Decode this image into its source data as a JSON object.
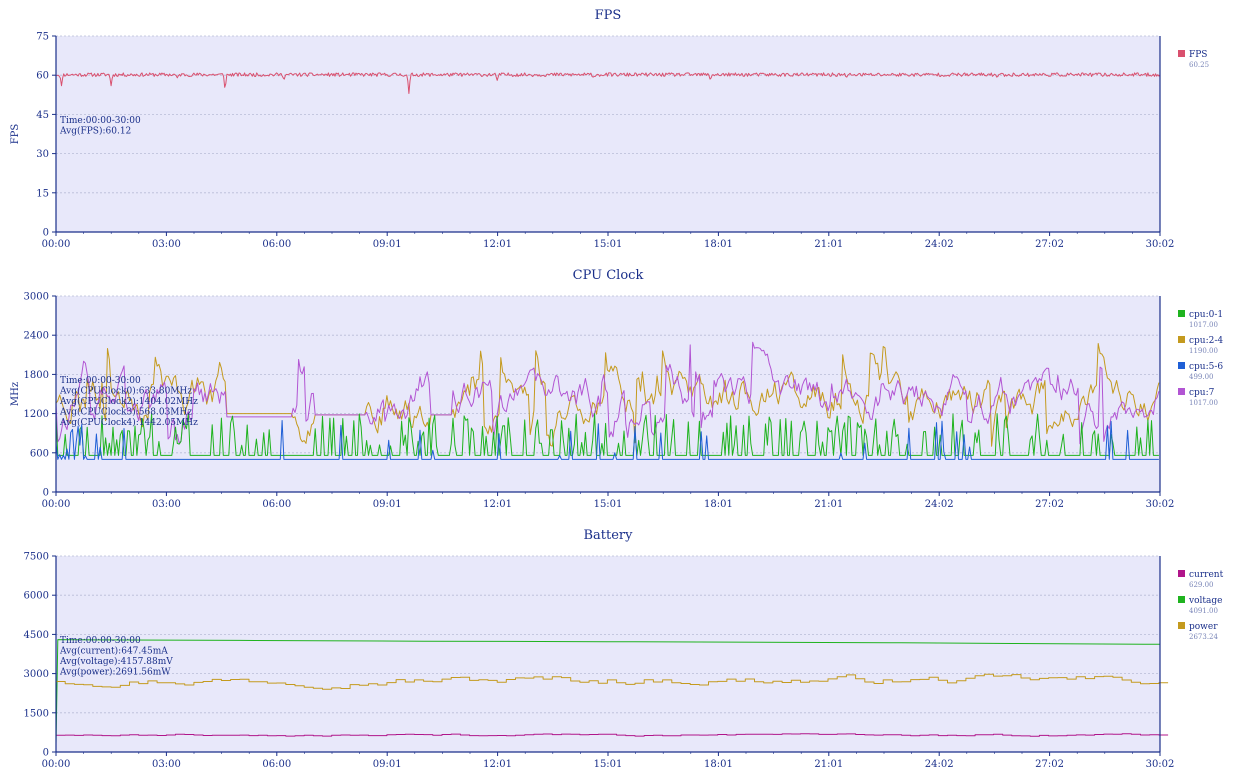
{
  "chart_data": [
    {
      "type": "line",
      "title": "FPS",
      "ylabel": "FPS",
      "ylim": [
        0,
        75
      ],
      "yticks": [
        "75",
        "60",
        "45",
        "30",
        "15",
        "0"
      ],
      "ytick_values": [
        75,
        60,
        45,
        30,
        15,
        0
      ],
      "x_ticks": [
        "00:00",
        "03:00",
        "06:00",
        "09:01",
        "12:01",
        "15:01",
        "18:01",
        "21:01",
        "24:02",
        "27:02",
        "30:02"
      ],
      "xlim_minutes": [
        0,
        30.03
      ],
      "annotation": [
        "Time:00:00-30:00",
        "Avg(FPS):60.12"
      ],
      "series": [
        {
          "name": "FPS",
          "legend_value": "60.25",
          "color": "#d9506e",
          "kind": "noise",
          "base": 60.2,
          "noise": 0.7,
          "step": 0.03,
          "seed": 11,
          "dips": [
            [
              0.15,
              56
            ],
            [
              1.5,
              56
            ],
            [
              3.3,
              59
            ],
            [
              4.6,
              54
            ],
            [
              6.2,
              58
            ],
            [
              9.6,
              53
            ],
            [
              12.0,
              58
            ],
            [
              14.6,
              59
            ],
            [
              17.8,
              58
            ],
            [
              21.5,
              59
            ],
            [
              25.6,
              59
            ]
          ]
        }
      ],
      "grid": true,
      "legend_position": "right"
    },
    {
      "type": "line",
      "title": "CPU Clock",
      "ylabel": "MHz",
      "ylim": [
        0,
        3000
      ],
      "yticks": [
        "3000",
        "2400",
        "1800",
        "1200",
        "600",
        "0"
      ],
      "ytick_values": [
        3000,
        2400,
        1800,
        1200,
        600,
        0
      ],
      "x_ticks": [
        "00:00",
        "03:00",
        "06:00",
        "09:01",
        "12:01",
        "15:01",
        "18:01",
        "21:01",
        "24:02",
        "27:02",
        "30:02"
      ],
      "xlim_minutes": [
        0,
        30.03
      ],
      "annotation": [
        "Time:00:00-30:00",
        "Avg(CPUClock0):633.80MHz",
        "Avg(CPUClock2):1404.02MHz",
        "Avg(CPUClock3):568.03MHz",
        "Avg(CPUClock4):1442.05MHz"
      ],
      "series": [
        {
          "name": "cpu:2-4",
          "legend_value": "1190.00",
          "color": "#c49a1e",
          "kind": "wild",
          "base": 1450,
          "spread": 500,
          "min": 700,
          "max": 2300,
          "step": 0.05,
          "seed": 23,
          "flat": [
            [
              4.6,
              6.4,
              1200
            ],
            [
              7.0,
              8.4,
              1180
            ],
            [
              10.2,
              10.8,
              1180
            ]
          ]
        },
        {
          "name": "cpu:7",
          "legend_value": "1017.00",
          "color": "#b255d3",
          "kind": "wild",
          "base": 1450,
          "spread": 480,
          "min": 700,
          "max": 2300,
          "step": 0.05,
          "seed": 37,
          "flat": [
            [
              4.6,
              6.4,
              1150
            ],
            [
              7.0,
              8.4,
              1180
            ],
            [
              10.2,
              10.8,
              1180
            ]
          ]
        },
        {
          "name": "cpu:0-1",
          "legend_value": "1017.00",
          "color": "#1fb31f",
          "kind": "spiky",
          "base": 560,
          "min": 700,
          "max": 1200,
          "density": 0.35,
          "step": 0.05,
          "seed": 51,
          "gaps": [
            [
              5.9,
              7.0
            ],
            [
              16.9,
              17.2
            ]
          ]
        },
        {
          "name": "cpu:5-6",
          "legend_value": "499.00",
          "color": "#1f5fd6",
          "kind": "spiky",
          "base": 499,
          "min": 550,
          "max": 1100,
          "density": 0.03,
          "step": 0.05,
          "seed": 67,
          "burst": [
            [
              0,
              0.9,
              0.45
            ],
            [
              1.0,
              2.2,
              0.04
            ],
            [
              9.8,
              10.8,
              0.15
            ],
            [
              23.6,
              24.4,
              0.15
            ]
          ]
        }
      ],
      "grid": true,
      "legend_position": "right"
    },
    {
      "type": "line",
      "title": "Battery",
      "ylabel": "",
      "ylim": [
        0,
        7500
      ],
      "yticks": [
        "7500",
        "6000",
        "4500",
        "3000",
        "1500",
        "0"
      ],
      "ytick_values": [
        7500,
        6000,
        4500,
        3000,
        1500,
        0
      ],
      "x_ticks": [
        "00:00",
        "03:00",
        "06:00",
        "09:01",
        "12:01",
        "15:01",
        "18:01",
        "21:01",
        "24:02",
        "27:02",
        "30:02"
      ],
      "xlim_minutes": [
        0,
        30.03
      ],
      "annotation": [
        "Time:00:00-30:00",
        "Avg(current):647.45mA",
        "Avg(voltage):4157.88mV",
        "Avg(power):2691.56mW"
      ],
      "series": [
        {
          "name": "current",
          "legend_value": "629.00",
          "color": "#b0158a",
          "kind": "step",
          "base": 650,
          "spread": 90,
          "step": 0.25,
          "seed": 81,
          "start_zero": true
        },
        {
          "name": "voltage",
          "legend_value": "4091.00",
          "color": "#1fb31f",
          "kind": "points",
          "points": [
            [
              0,
              300
            ],
            [
              0.05,
              4300
            ],
            [
              1.0,
              4290
            ],
            [
              5.0,
              4270
            ],
            [
              10.0,
              4240
            ],
            [
              15.0,
              4220
            ],
            [
              20.0,
              4195
            ],
            [
              23.0,
              4180
            ],
            [
              26.0,
              4150
            ],
            [
              30.03,
              4120
            ]
          ]
        },
        {
          "name": "power",
          "legend_value": "2673.24",
          "color": "#c49a1e",
          "kind": "step",
          "base": 2750,
          "spread": 380,
          "step": 0.25,
          "seed": 97,
          "start_zero": true
        }
      ],
      "grid": true,
      "legend_position": "right"
    }
  ]
}
